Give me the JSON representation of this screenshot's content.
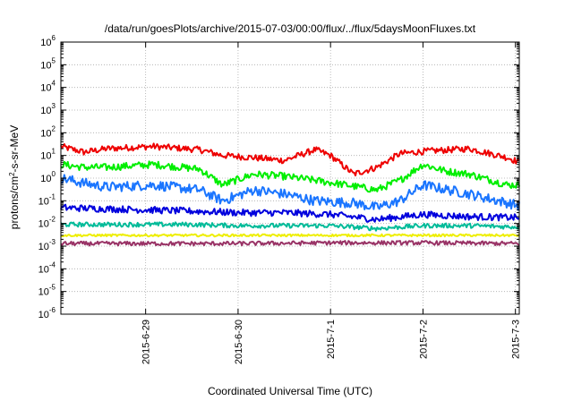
{
  "chart_data": {
    "type": "line",
    "title": "/data/run/goesPlots/archive/2015-07-03/00:00/flux/../flux/5daysMoonFluxes.txt",
    "xlabel": "Coordinated Universal Time (UTC)",
    "ylabel": "protons/cm2-s-sr-MeV",
    "ylabel_base": "protons/cm",
    "ylabel_sup": "2",
    "ylabel_rest": "-s-sr-MeV",
    "y_scale": "log",
    "ylim_exponents": [
      -6,
      6
    ],
    "y_ticks": [
      {
        "base": "10",
        "exp": "-6"
      },
      {
        "base": "10",
        "exp": "-5"
      },
      {
        "base": "10",
        "exp": "-4"
      },
      {
        "base": "10",
        "exp": "-3"
      },
      {
        "base": "10",
        "exp": "-2"
      },
      {
        "base": "10",
        "exp": "-1"
      },
      {
        "base": "10",
        "exp": "0"
      },
      {
        "base": "10",
        "exp": "1"
      },
      {
        "base": "10",
        "exp": "2"
      },
      {
        "base": "10",
        "exp": "3"
      },
      {
        "base": "10",
        "exp": "4"
      },
      {
        "base": "10",
        "exp": "5"
      },
      {
        "base": "10",
        "exp": "6"
      }
    ],
    "xlim": [
      "2015-06-28T02:00",
      "2015-07-03T01:00"
    ],
    "x_ticks": [
      "2015-6-29",
      "2015-6-30",
      "2015-7-1",
      "2015-7-2",
      "2015-7-3"
    ],
    "x_tick_dates": [
      "2015-06-29",
      "2015-06-30",
      "2015-07-01",
      "2015-07-02",
      "2015-07-03"
    ],
    "grid": true,
    "grid_style": "dotted",
    "series": [
      {
        "color": "#ee0000",
        "noise": 0.14,
        "x": [
          "2015-06-28T02:00",
          "2015-06-28T08:00",
          "2015-06-28T14:00",
          "2015-06-29T02:00",
          "2015-06-29T14:00",
          "2015-06-29T20:00",
          "2015-06-30T04:00",
          "2015-06-30T12:00",
          "2015-06-30T20:00",
          "2015-07-01T00:00",
          "2015-07-01T06:00",
          "2015-07-01T12:00",
          "2015-07-01T18:00",
          "2015-07-02T00:00",
          "2015-07-02T12:00",
          "2015-07-02T22:00",
          "2015-07-03T01:00"
        ],
        "y": [
          25,
          14,
          20,
          25,
          18,
          10,
          8,
          6,
          18,
          10,
          1.5,
          3,
          12,
          15,
          20,
          8,
          5
        ]
      },
      {
        "color": "#00ee00",
        "noise": 0.16,
        "x": [
          "2015-06-28T02:00",
          "2015-06-28T08:00",
          "2015-06-28T14:00",
          "2015-06-29T02:00",
          "2015-06-29T14:00",
          "2015-06-29T20:00",
          "2015-06-30T04:00",
          "2015-06-30T12:00",
          "2015-06-30T20:00",
          "2015-07-01T04:00",
          "2015-07-01T12:00",
          "2015-07-01T18:00",
          "2015-07-02T00:00",
          "2015-07-02T06:00",
          "2015-07-02T12:00",
          "2015-07-02T22:00",
          "2015-07-03T01:00"
        ],
        "y": [
          4,
          3,
          3,
          4,
          2.5,
          0.5,
          1.5,
          1.2,
          0.8,
          0.5,
          0.3,
          0.8,
          4,
          2,
          1.5,
          0.5,
          0.5
        ]
      },
      {
        "color": "#1a75ff",
        "noise": 0.22,
        "x": [
          "2015-06-28T02:00",
          "2015-06-28T08:00",
          "2015-06-28T14:00",
          "2015-06-29T02:00",
          "2015-06-29T14:00",
          "2015-06-29T20:00",
          "2015-06-30T04:00",
          "2015-06-30T12:00",
          "2015-06-30T20:00",
          "2015-07-01T06:00",
          "2015-07-01T12:00",
          "2015-07-01T18:00",
          "2015-07-02T00:00",
          "2015-07-02T12:00",
          "2015-07-02T22:00",
          "2015-07-03T01:00"
        ],
        "y": [
          1,
          0.6,
          0.4,
          0.5,
          0.3,
          0.1,
          0.3,
          0.2,
          0.1,
          0.08,
          0.05,
          0.1,
          0.5,
          0.2,
          0.08,
          0.06
        ]
      },
      {
        "color": "#0000dd",
        "noise": 0.15,
        "x": [
          "2015-06-28T02:00",
          "2015-06-28T12:00",
          "2015-06-29T00:00",
          "2015-06-29T12:00",
          "2015-06-30T00:00",
          "2015-06-30T12:00",
          "2015-07-01T00:00",
          "2015-07-01T12:00",
          "2015-07-02T00:00",
          "2015-07-02T12:00",
          "2015-07-03T01:00"
        ],
        "y": [
          0.05,
          0.045,
          0.04,
          0.035,
          0.03,
          0.03,
          0.025,
          0.015,
          0.025,
          0.02,
          0.018
        ]
      },
      {
        "color": "#00bb99",
        "noise": 0.1,
        "x": [
          "2015-06-28T02:00",
          "2015-06-28T12:00",
          "2015-06-29T00:00",
          "2015-06-29T12:00",
          "2015-06-30T00:00",
          "2015-06-30T12:00",
          "2015-07-01T00:00",
          "2015-07-01T12:00",
          "2015-07-02T00:00",
          "2015-07-02T12:00",
          "2015-07-03T01:00"
        ],
        "y": [
          0.009,
          0.009,
          0.009,
          0.009,
          0.008,
          0.008,
          0.008,
          0.006,
          0.008,
          0.008,
          0.007
        ]
      },
      {
        "color": "#eeee00",
        "noise": 0.05,
        "x": [
          "2015-06-28T02:00",
          "2015-06-29T00:00",
          "2015-06-30T00:00",
          "2015-07-01T00:00",
          "2015-07-02T00:00",
          "2015-07-03T01:00"
        ],
        "y": [
          0.003,
          0.003,
          0.003,
          0.003,
          0.003,
          0.003
        ]
      },
      {
        "color": "#993366",
        "noise": 0.09,
        "x": [
          "2015-06-28T02:00",
          "2015-06-29T00:00",
          "2015-06-30T00:00",
          "2015-07-01T00:00",
          "2015-07-02T00:00",
          "2015-07-03T01:00"
        ],
        "y": [
          0.0013,
          0.0013,
          0.0013,
          0.0014,
          0.0014,
          0.0013
        ]
      }
    ]
  }
}
